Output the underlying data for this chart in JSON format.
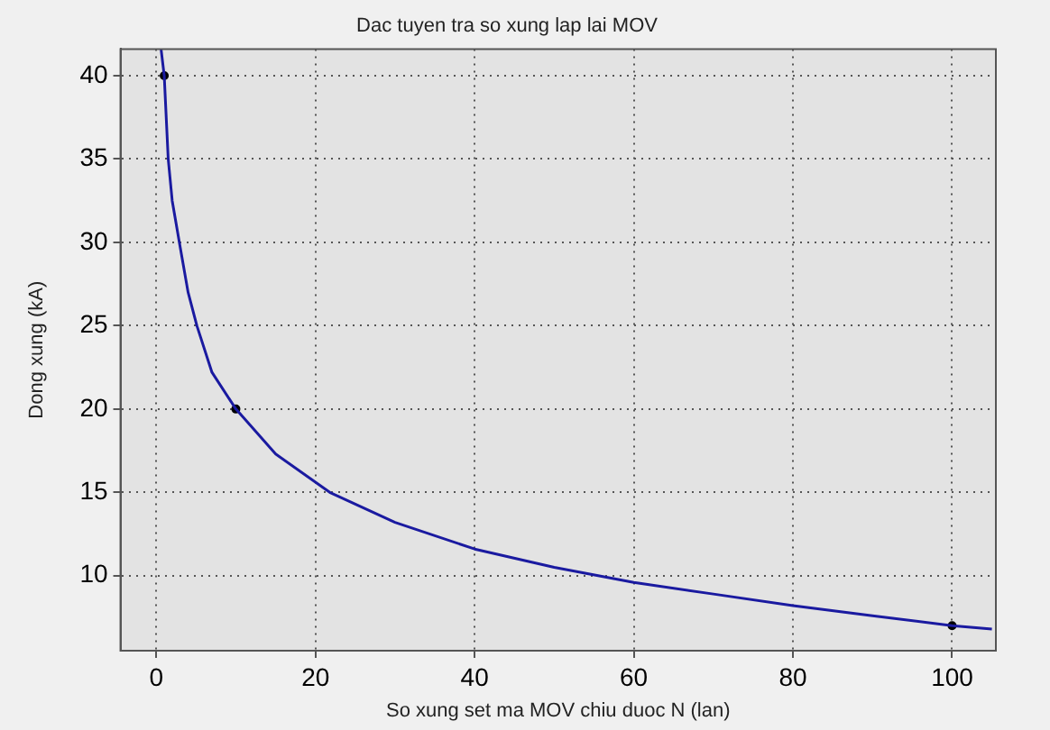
{
  "chart_data": {
    "type": "line",
    "title": "Dac tuyen tra so xung lap lai MOV",
    "xlabel": "So xung set ma MOV chiu duoc N (lan)",
    "ylabel": "Dong xung (kA)",
    "xlim": [
      -4.5,
      105.5
    ],
    "ylim": [
      5.5,
      41.6
    ],
    "xticks": [
      0,
      20,
      40,
      60,
      80,
      100
    ],
    "yticks": [
      10,
      15,
      20,
      25,
      30,
      35,
      40
    ],
    "grid": true,
    "legend": false,
    "series": [
      {
        "type": "line",
        "color": "#1a1aa0",
        "marker": "none",
        "x": [
          0.6,
          1,
          1.5,
          2,
          2.9,
          4,
          5.1,
          7,
          10,
          15,
          21.8,
          30,
          40,
          50,
          60,
          70,
          80,
          90,
          100,
          105
        ],
        "values": [
          41.6,
          40,
          35,
          32.5,
          30,
          27,
          25,
          22.2,
          20,
          17.3,
          15,
          13.2,
          11.6,
          10.5,
          9.6,
          8.9,
          8.2,
          7.6,
          7.0,
          6.8
        ]
      },
      {
        "type": "scatter",
        "color": "#000000",
        "marker": "circle",
        "x": [
          1,
          10,
          100
        ],
        "values": [
          40,
          20,
          7
        ]
      }
    ]
  }
}
